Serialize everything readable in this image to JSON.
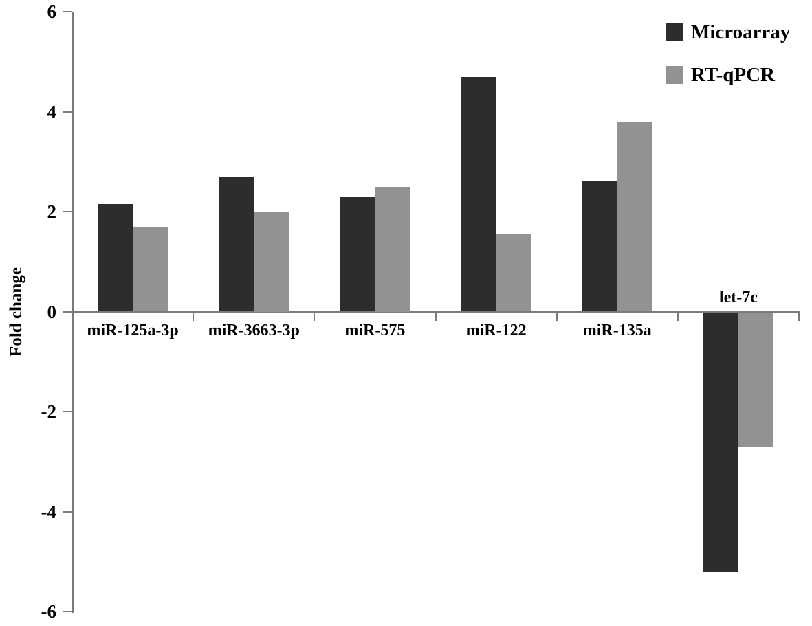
{
  "chart_data": {
    "type": "bar",
    "title": "",
    "xlabel": "",
    "ylabel": "Fold change",
    "ylim": [
      -6,
      6
    ],
    "yticks": [
      6,
      4,
      2,
      0,
      -2,
      -4,
      -6
    ],
    "grid": false,
    "legend_position": "top-right",
    "categories": [
      "miR-125a-3p",
      "miR-3663-3p",
      "miR-575",
      "miR-122",
      "miR-135a",
      "let-7c"
    ],
    "series": [
      {
        "name": "Microarray",
        "color": "#2d2d2d",
        "values": [
          2.15,
          2.7,
          2.3,
          4.7,
          2.6,
          -5.2
        ]
      },
      {
        "name": "RT-qPCR",
        "color": "#929292",
        "values": [
          1.7,
          2.0,
          2.5,
          1.55,
          3.8,
          -2.7
        ]
      }
    ],
    "colors": {
      "axis": "#7a7a7a",
      "text": "#000000",
      "background": "#ffffff"
    }
  }
}
